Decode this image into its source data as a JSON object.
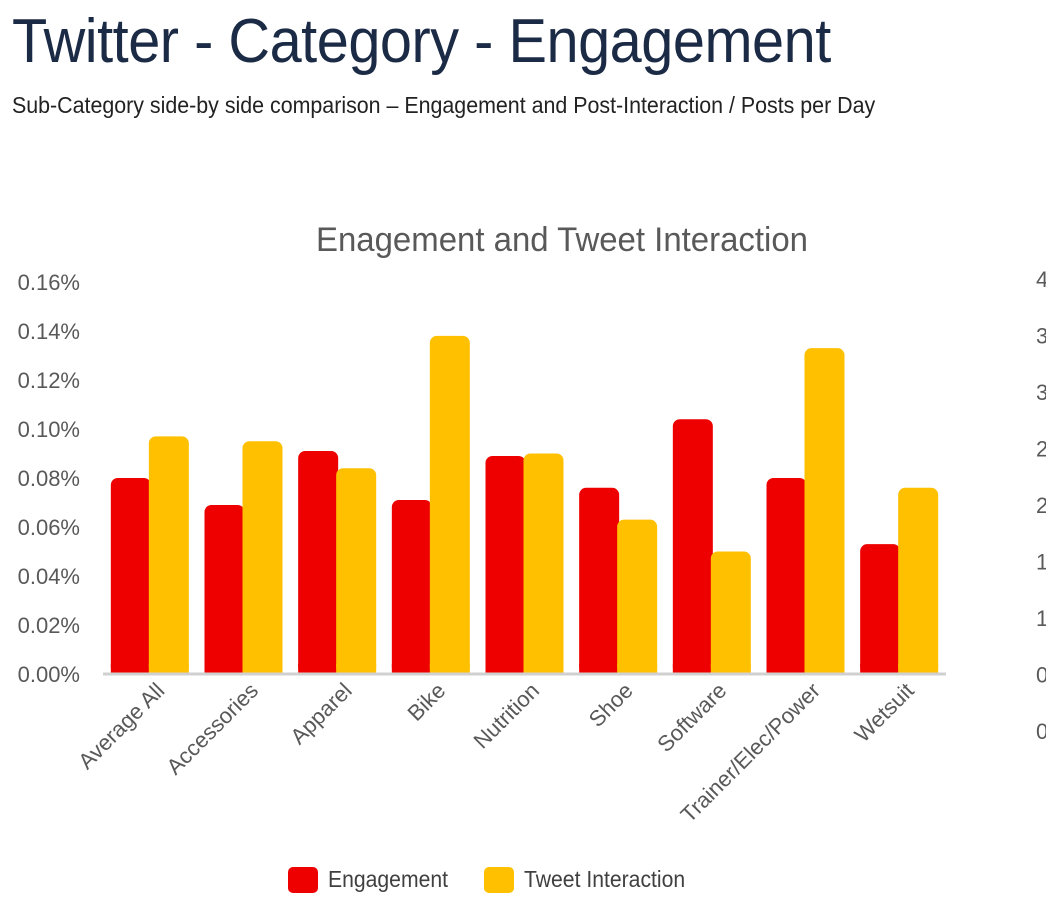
{
  "header": {
    "title": "Twitter - Category - Engagement",
    "subtitle": "Sub-Category side-by side comparison – Engagement and Post-Interaction / Posts per Day"
  },
  "colors": {
    "engagement": "#ee0000",
    "tweet_interaction": "#ffc000",
    "axis": "#d0d0d0",
    "text": "#595959"
  },
  "chart_data": {
    "type": "bar",
    "title": "Enagement and Tweet Interaction",
    "categories": [
      "Average All",
      "Accessories",
      "Apparel",
      "Bike",
      "Nutrition",
      "Shoe",
      "Software",
      "Trainer/Elec/Power",
      "Wetsuit"
    ],
    "series": [
      {
        "name": "Engagement",
        "values": [
          0.08,
          0.069,
          0.091,
          0.071,
          0.089,
          0.076,
          0.104,
          0.08,
          0.053
        ]
      },
      {
        "name": "Tweet Interaction",
        "values": [
          0.097,
          0.095,
          0.084,
          0.138,
          0.09,
          0.063,
          0.05,
          0.133,
          0.076
        ]
      }
    ],
    "y_ticks": [
      "0.00%",
      "0.02%",
      "0.04%",
      "0.06%",
      "0.08%",
      "0.10%",
      "0.12%",
      "0.14%",
      "0.16%"
    ],
    "ylim": [
      0,
      0.16
    ],
    "secondary_y_ticks": [
      "0",
      "0",
      "1",
      "1",
      "2",
      "2",
      "3",
      "3",
      "4"
    ],
    "xlabel": "",
    "ylabel": "",
    "legend": "bottom"
  }
}
